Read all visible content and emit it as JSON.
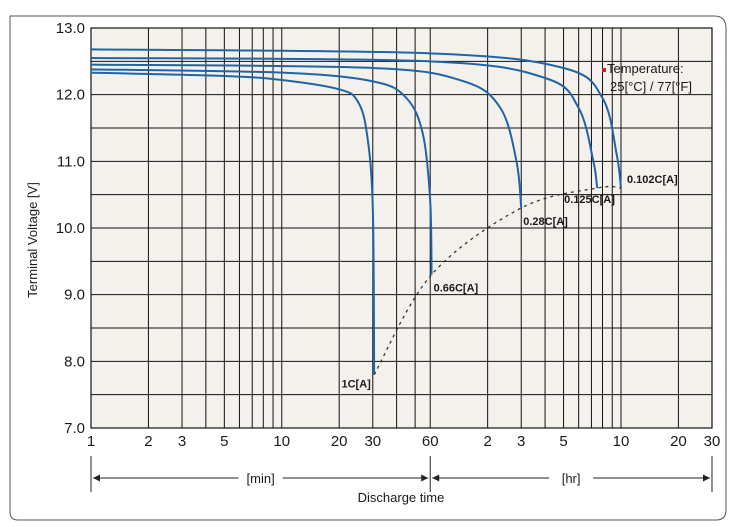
{
  "chart_data": {
    "type": "line",
    "title": "",
    "xlabel": "Discharge time",
    "ylabel": "Terminal Voltage [V]",
    "ylim": [
      7.0,
      13.0
    ],
    "y_ticks": [
      "7.0",
      "8.0",
      "9.0",
      "10.0",
      "11.0",
      "12.0",
      "13.0"
    ],
    "x_tick_labels": [
      "1",
      "2",
      "3",
      "5",
      "10",
      "20",
      "30",
      "60",
      "2",
      "3",
      "5",
      "10",
      "20",
      "30"
    ],
    "x_scale": "log (minutes, then hours)",
    "x_units": {
      "minutes": "[min]",
      "hours": "[hr]"
    },
    "annotation": {
      "line1": "Temperature:",
      "line2": "25[°C] / 77[°F]",
      "bullet_color": "#cc2222"
    },
    "grid": true,
    "colors": {
      "curve": "#1f64a8",
      "plot_bg": "#f4f1ec",
      "grid": "#111111",
      "end_locus": "#333333"
    },
    "series": [
      {
        "name": "1C[A]",
        "x_min": [
          1,
          5,
          10,
          20,
          25,
          28,
          30,
          30.5
        ],
        "y": [
          12.33,
          12.28,
          12.22,
          12.08,
          11.9,
          11.4,
          10.3,
          7.8
        ]
      },
      {
        "name": "0.66C[A]",
        "x_min": [
          1,
          10,
          30,
          45,
          55,
          60,
          61
        ],
        "y": [
          12.38,
          12.33,
          12.2,
          11.95,
          11.4,
          10.4,
          9.3
        ]
      },
      {
        "name": "0.28C[A]",
        "x_min": [
          1,
          30,
          90,
          140,
          170,
          180
        ],
        "y": [
          12.45,
          12.4,
          12.2,
          11.8,
          11.0,
          10.3
        ]
      },
      {
        "name": "0.125C[A]",
        "x_min": [
          1,
          60,
          240,
          360,
          430,
          450
        ],
        "y": [
          12.55,
          12.5,
          12.25,
          11.8,
          11.0,
          10.6
        ]
      },
      {
        "name": "0.102C[A]",
        "x_min": [
          1,
          60,
          300,
          480,
          570,
          600
        ],
        "y": [
          12.68,
          12.62,
          12.4,
          11.95,
          11.1,
          10.6
        ]
      }
    ],
    "end_of_discharge_line": {
      "x_min": [
        30.5,
        61,
        180,
        450,
        600
      ],
      "y": [
        7.8,
        9.3,
        10.3,
        10.6,
        10.6
      ]
    }
  }
}
